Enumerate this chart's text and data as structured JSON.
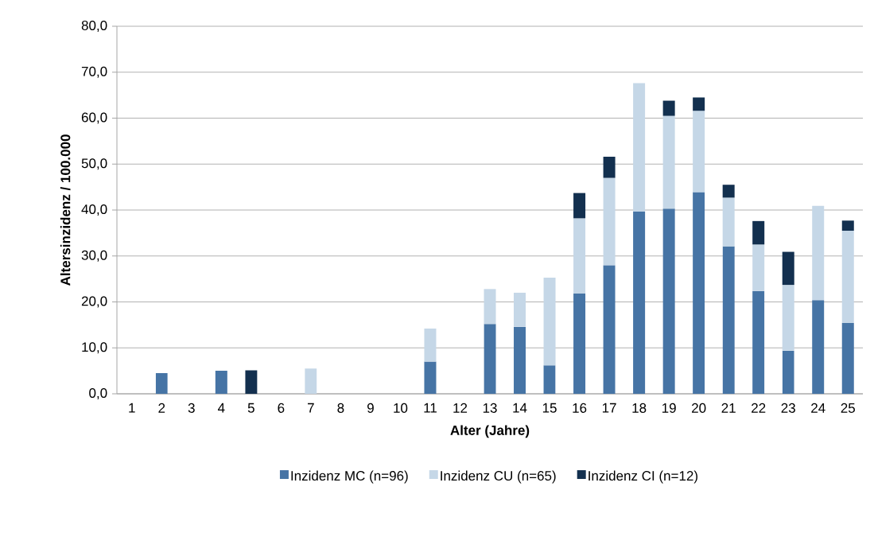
{
  "chart_data": {
    "type": "bar",
    "stacked": true,
    "xlabel": "Alter (Jahre)",
    "ylabel": "Altersinzidenz / 100.000",
    "categories": [
      "1",
      "2",
      "3",
      "4",
      "5",
      "6",
      "7",
      "8",
      "9",
      "10",
      "11",
      "12",
      "13",
      "14",
      "15",
      "16",
      "17",
      "18",
      "19",
      "20",
      "21",
      "22",
      "23",
      "24",
      "25"
    ],
    "series": [
      {
        "name": "Inzidenz MC (n=96)",
        "color": "#4674a5",
        "values": [
          null,
          4.5,
          null,
          5.0,
          null,
          null,
          null,
          null,
          null,
          null,
          7.0,
          null,
          15.2,
          14.6,
          6.2,
          21.8,
          28.0,
          39.7,
          40.3,
          43.9,
          32.1,
          22.4,
          9.4,
          20.4,
          15.4
        ]
      },
      {
        "name": "Inzidenz CU (n=65)",
        "color": "#c5d7e7",
        "values": [
          null,
          null,
          null,
          null,
          null,
          null,
          5.5,
          null,
          null,
          null,
          7.2,
          null,
          7.6,
          7.4,
          19.1,
          16.4,
          19.0,
          27.9,
          20.2,
          17.7,
          10.6,
          10.1,
          14.3,
          20.5,
          20.1
        ]
      },
      {
        "name": "Inzidenz CI (n=12)",
        "color": "#13304f",
        "values": [
          null,
          null,
          null,
          null,
          5.1,
          null,
          null,
          null,
          null,
          null,
          null,
          null,
          null,
          null,
          null,
          5.5,
          4.6,
          null,
          3.3,
          2.9,
          2.8,
          5.1,
          7.2,
          null,
          2.2
        ]
      }
    ],
    "ylim": [
      0,
      80
    ],
    "yticks": [
      {
        "value": 0,
        "label": "0,0"
      },
      {
        "value": 10,
        "label": "10,0"
      },
      {
        "value": 20,
        "label": "20,0"
      },
      {
        "value": 30,
        "label": "30,0"
      },
      {
        "value": 40,
        "label": "40,0"
      },
      {
        "value": 50,
        "label": "50,0"
      },
      {
        "value": 60,
        "label": "60,0"
      },
      {
        "value": 70,
        "label": "70,0"
      },
      {
        "value": 80,
        "label": "80,0"
      }
    ],
    "grid": "y",
    "legend": "bottom"
  }
}
